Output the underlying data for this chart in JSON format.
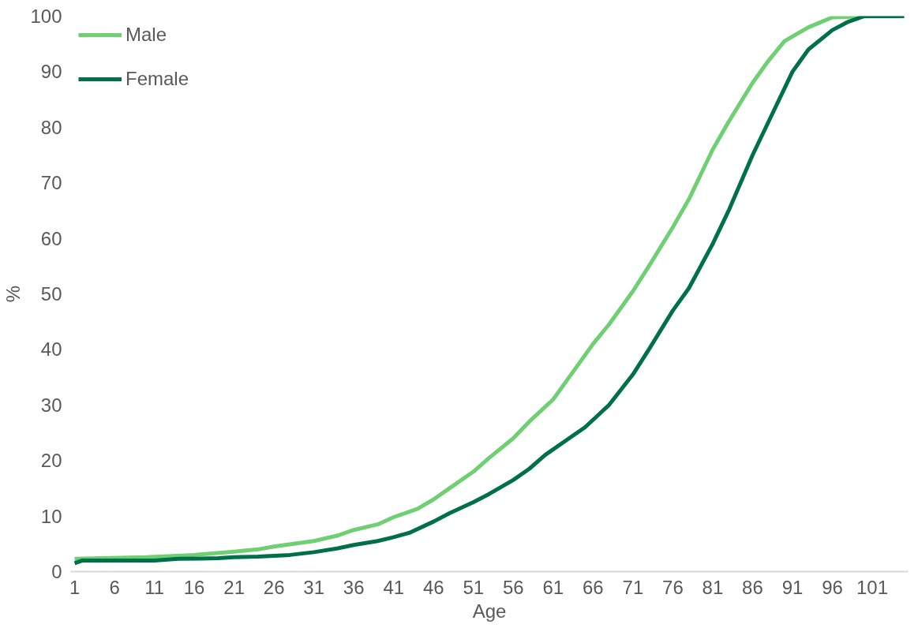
{
  "chart_data": {
    "type": "line",
    "xlabel": "Age",
    "ylabel": "%",
    "xlim": [
      0.5,
      105.5
    ],
    "ylim": [
      0,
      100
    ],
    "xticks": [
      1,
      6,
      11,
      16,
      21,
      26,
      31,
      36,
      41,
      46,
      51,
      56,
      61,
      66,
      71,
      76,
      81,
      86,
      91,
      96,
      101
    ],
    "yticks": [
      0,
      10,
      20,
      30,
      40,
      50,
      60,
      70,
      80,
      90,
      100
    ],
    "legend": "top left",
    "series": [
      {
        "name": "Male",
        "color": "#6fcf73",
        "x": [
          1,
          10,
          16,
          21,
          24,
          26,
          29,
          31,
          34,
          36,
          39,
          41,
          44,
          46,
          48,
          51,
          53,
          56,
          58,
          61,
          63,
          66,
          68,
          71,
          73,
          76,
          78,
          81,
          83,
          86,
          88,
          90,
          93,
          96,
          101,
          105
        ],
        "values": [
          2.3,
          2.6,
          3.0,
          3.6,
          4.0,
          4.5,
          5.1,
          5.5,
          6.5,
          7.5,
          8.5,
          9.8,
          11.3,
          13,
          15,
          18,
          20.5,
          24,
          27,
          31,
          35,
          41,
          44.5,
          50.5,
          55,
          62,
          67,
          76,
          81,
          88,
          92,
          95.5,
          98,
          99.8,
          100,
          100
        ]
      },
      {
        "name": "Female",
        "color": "#00704a",
        "x": [
          1,
          2,
          11,
          14,
          19,
          21,
          24,
          28,
          31,
          34,
          36,
          39,
          41,
          43,
          46,
          48,
          51,
          53,
          56,
          58,
          60,
          63,
          65,
          68,
          71,
          73,
          76,
          78,
          81,
          83,
          86,
          88,
          91,
          93,
          96,
          98,
          100,
          105
        ],
        "values": [
          1.5,
          2.0,
          2.0,
          2.3,
          2.4,
          2.6,
          2.7,
          3.0,
          3.5,
          4.2,
          4.8,
          5.5,
          6.2,
          7,
          9,
          10.5,
          12.5,
          14,
          16.5,
          18.5,
          21,
          24,
          26,
          30,
          35.5,
          40,
          47,
          51,
          59,
          65,
          75,
          81,
          90,
          94,
          97.5,
          99,
          100,
          100
        ]
      }
    ]
  }
}
